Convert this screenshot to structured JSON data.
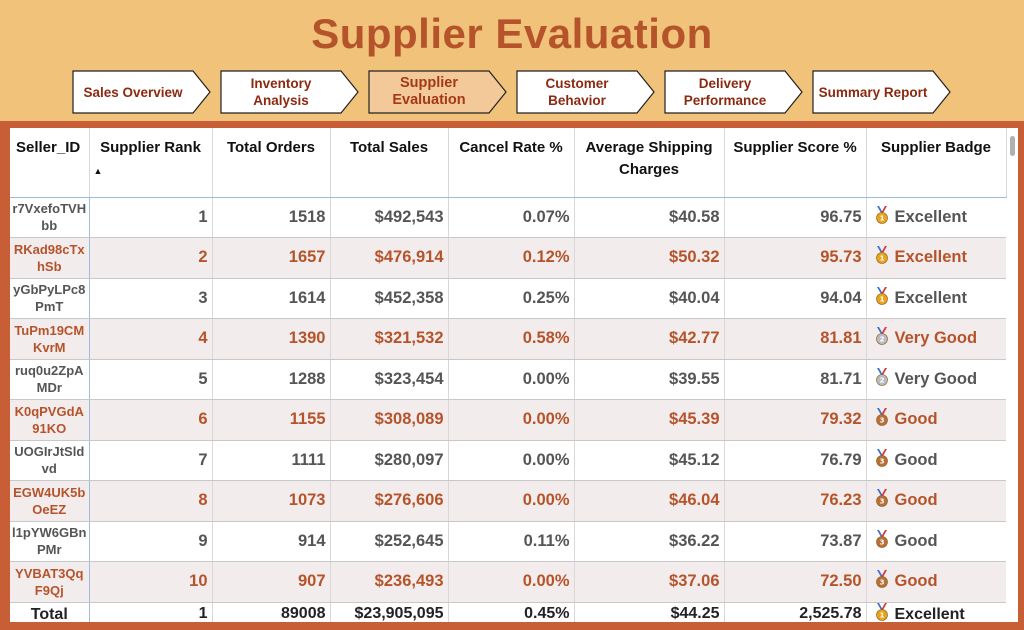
{
  "title": "Supplier Evaluation",
  "nav": [
    {
      "label": "Sales Overview",
      "active": false
    },
    {
      "label": "Inventory\nAnalysis",
      "active": false
    },
    {
      "label": "Supplier\nEvaluation",
      "active": true
    },
    {
      "label": "Customer\nBehavior",
      "active": false
    },
    {
      "label": "Delivery\nPerformance",
      "active": false
    },
    {
      "label": "Summary Report",
      "active": false
    }
  ],
  "colors": {
    "background": "#f0c27a",
    "accent": "#b5542b",
    "nav_active": "#f4c99a",
    "gold": "#e8a41e",
    "silver": "#b8bcc2",
    "bronze": "#b8703a"
  },
  "table": {
    "headers": {
      "seller_id": "Seller_ID",
      "rank": "Supplier Rank",
      "orders": "Total Orders",
      "sales": "Total Sales",
      "cancel": "Cancel Rate %",
      "shipping": "Average Shipping Charges",
      "score": "Supplier Score %",
      "badge": "Supplier Badge"
    },
    "sort_indicator": "▲",
    "rows": [
      {
        "seller_id": "r7VxefoTVHbb",
        "rank": "1",
        "orders": "1518",
        "sales": "$492,543",
        "cancel": "0.07%",
        "shipping": "$40.58",
        "score": "96.75",
        "badge": "Excellent",
        "medal": "gold-medal-icon"
      },
      {
        "seller_id": "RKad98cTxhSb",
        "rank": "2",
        "orders": "1657",
        "sales": "$476,914",
        "cancel": "0.12%",
        "shipping": "$50.32",
        "score": "95.73",
        "badge": "Excellent",
        "medal": "gold-medal-icon"
      },
      {
        "seller_id": "yGbPyLPc8PmT",
        "rank": "3",
        "orders": "1614",
        "sales": "$452,358",
        "cancel": "0.25%",
        "shipping": "$40.04",
        "score": "94.04",
        "badge": "Excellent",
        "medal": "gold-medal-icon"
      },
      {
        "seller_id": "TuPm19CMKvrM",
        "rank": "4",
        "orders": "1390",
        "sales": "$321,532",
        "cancel": "0.58%",
        "shipping": "$42.77",
        "score": "81.81",
        "badge": "Very Good",
        "medal": "silver-medal-icon"
      },
      {
        "seller_id": "ruq0u2ZpAMDr",
        "rank": "5",
        "orders": "1288",
        "sales": "$323,454",
        "cancel": "0.00%",
        "shipping": "$39.55",
        "score": "81.71",
        "badge": "Very Good",
        "medal": "silver-medal-icon"
      },
      {
        "seller_id": "K0qPVGdA91KO",
        "rank": "6",
        "orders": "1155",
        "sales": "$308,089",
        "cancel": "0.00%",
        "shipping": "$45.39",
        "score": "79.32",
        "badge": "Good",
        "medal": "bronze-medal-icon"
      },
      {
        "seller_id": "UOGIrJtSldvd",
        "rank": "7",
        "orders": "1111",
        "sales": "$280,097",
        "cancel": "0.00%",
        "shipping": "$45.12",
        "score": "76.79",
        "badge": "Good",
        "medal": "bronze-medal-icon"
      },
      {
        "seller_id": "EGW4UK5bOeEZ",
        "rank": "8",
        "orders": "1073",
        "sales": "$276,606",
        "cancel": "0.00%",
        "shipping": "$46.04",
        "score": "76.23",
        "badge": "Good",
        "medal": "bronze-medal-icon"
      },
      {
        "seller_id": "l1pYW6GBnPMr",
        "rank": "9",
        "orders": "914",
        "sales": "$252,645",
        "cancel": "0.11%",
        "shipping": "$36.22",
        "score": "73.87",
        "badge": "Good",
        "medal": "bronze-medal-icon"
      },
      {
        "seller_id": "YVBAT3QqF9Qj",
        "rank": "10",
        "orders": "907",
        "sales": "$236,493",
        "cancel": "0.00%",
        "shipping": "$37.06",
        "score": "72.50",
        "badge": "Good",
        "medal": "bronze-medal-icon"
      }
    ],
    "total": {
      "seller_id": "Total",
      "rank": "1",
      "orders": "89008",
      "sales": "$23,905,095",
      "cancel": "0.45%",
      "shipping": "$44.25",
      "score": "2,525.78",
      "badge": "Excellent",
      "medal": "gold-medal-icon"
    }
  }
}
